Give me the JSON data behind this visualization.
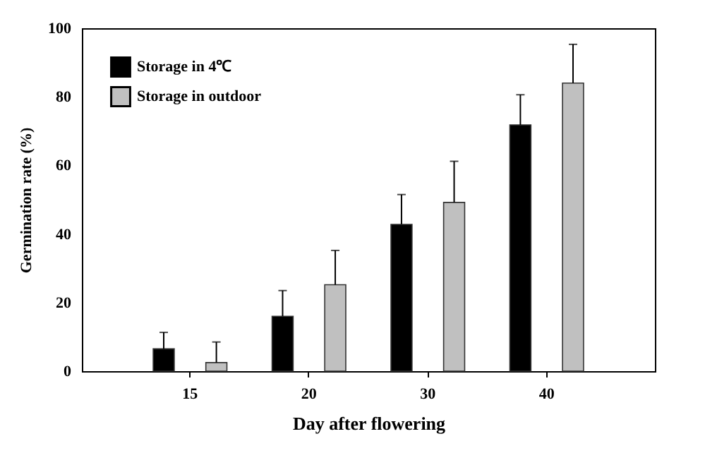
{
  "chart_data": {
    "type": "bar",
    "xlabel": "Day after flowering",
    "ylabel": "Germination rate (%)",
    "categories": [
      "15",
      "20",
      "30",
      "40"
    ],
    "series": [
      {
        "name": "Storage in 4℃",
        "color": "#000000",
        "values": [
          6.5,
          16,
          42.8,
          71.8
        ],
        "errors": [
          [
            6.5,
            11.3
          ],
          [
            16,
            23.5
          ],
          [
            42.8,
            51.5
          ],
          [
            71.8,
            80.6
          ]
        ]
      },
      {
        "name": "Storage in outdoor",
        "color": "#c0c0c0",
        "values": [
          2.5,
          25.2,
          49.2,
          84
        ],
        "errors": [
          [
            2.5,
            8.5
          ],
          [
            25.2,
            35.2
          ],
          [
            49.2,
            61.2
          ],
          [
            84,
            95.3
          ]
        ]
      }
    ],
    "ylim": [
      0,
      100
    ],
    "yticks": [
      0,
      20,
      40,
      60,
      80,
      100
    ],
    "grid": false,
    "legend": "top left"
  }
}
